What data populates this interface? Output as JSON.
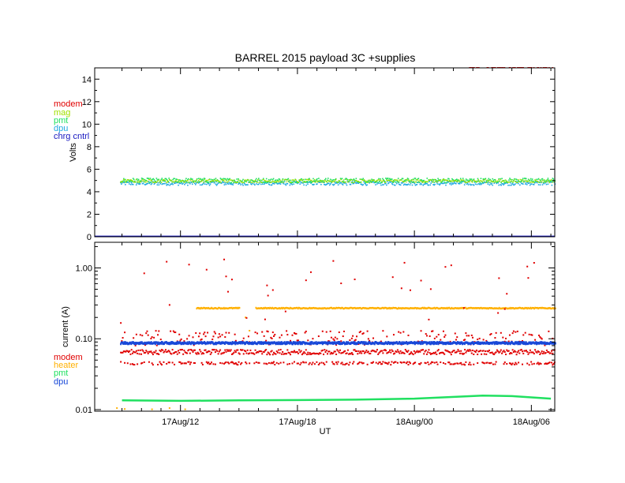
{
  "colors": {
    "modem": "#e00000",
    "mag": "#a0e000",
    "pmt": "#20e060",
    "dpu": "#20a8e0",
    "chrg": "#1818c0",
    "heater": "#ffb000",
    "dpu_current": "#1848d8",
    "axis": "#000000"
  },
  "chart_data": [
    {
      "type": "scatter",
      "title": "BARREL 2015 payload 3C +supplies",
      "ylabel": "Volts",
      "xlabel": "",
      "xlim_hours": [
        -16.4,
        7.2
      ],
      "ylim": [
        0,
        15
      ],
      "y_scale": "linear",
      "y_ticks": [
        0,
        2,
        4,
        6,
        8,
        10,
        12,
        14
      ],
      "y_tick_labels": [
        "0",
        "2",
        "4",
        "6",
        "8",
        "10",
        "12",
        "14"
      ],
      "legend_position": "left",
      "legend": [
        {
          "label": "modem",
          "color": "#e00000"
        },
        {
          "label": "mag",
          "color": "#a0e000"
        },
        {
          "label": "pmt",
          "color": "#20e060"
        },
        {
          "label": "dpu",
          "color": "#20a8e0"
        },
        {
          "label": "chrg cntrl",
          "color": "#1818c0"
        }
      ],
      "series": [
        {
          "name": "modem",
          "color": "#e00000",
          "level": 15.0,
          "x_start_hours": 2.8,
          "note_visible": "clipped at top"
        },
        {
          "name": "mag",
          "color": "#a0e000",
          "level": 5.0,
          "jitter": 0.15
        },
        {
          "name": "pmt",
          "color": "#20e060",
          "level": 5.0,
          "jitter": 0.2
        },
        {
          "name": "dpu",
          "color": "#20a8e0",
          "level": 4.75,
          "jitter": 0.15
        },
        {
          "name": "chrg cntrl",
          "color": "#1818c0",
          "level": 0.0,
          "jitter": 0.0
        }
      ]
    },
    {
      "type": "scatter",
      "title": "",
      "ylabel": "current (A)",
      "xlabel": "UT",
      "xlim_hours": [
        -16.4,
        7.2
      ],
      "y_scale": "log",
      "ylim": [
        0.0095,
        2.3
      ],
      "y_ticks": [
        0.01,
        0.1,
        1.0
      ],
      "y_tick_labels": [
        "0.01",
        "0.10",
        "1.00"
      ],
      "x_ticks_hours": [
        -12,
        -6,
        0,
        6
      ],
      "x_tick_labels": [
        "17Aug/12",
        "17Aug/18",
        "18Aug/00",
        "18Aug/06"
      ],
      "legend_position": "left",
      "legend": [
        {
          "label": "modem",
          "color": "#e00000"
        },
        {
          "label": "heater",
          "color": "#ffb000"
        },
        {
          "label": "pmt",
          "color": "#20e060"
        },
        {
          "label": "dpu",
          "color": "#1848d8"
        }
      ],
      "series": [
        {
          "name": "modem",
          "color": "#e00000",
          "levels": [
            0.045,
            0.065,
            0.1
          ],
          "outliers_range": [
            0.15,
            1.45
          ]
        },
        {
          "name": "heater",
          "color": "#ffb000",
          "level": 0.27,
          "x_range_hours": [
            -11.2,
            7.2
          ],
          "gap_hours": [
            -9.0,
            -8.2
          ],
          "low_points": 0.0105
        },
        {
          "name": "pmt",
          "color": "#20e060",
          "points": [
            [
              -15.0,
              0.0135
            ],
            [
              -12.0,
              0.0133
            ],
            [
              -9.0,
              0.0135
            ],
            [
              -3.0,
              0.0138
            ],
            [
              0.0,
              0.0143
            ],
            [
              3.5,
              0.0158
            ],
            [
              5.0,
              0.0155
            ],
            [
              7.0,
              0.0143
            ]
          ]
        },
        {
          "name": "dpu",
          "color": "#1848d8",
          "level": 0.087,
          "jitter": 0.003
        }
      ]
    }
  ]
}
